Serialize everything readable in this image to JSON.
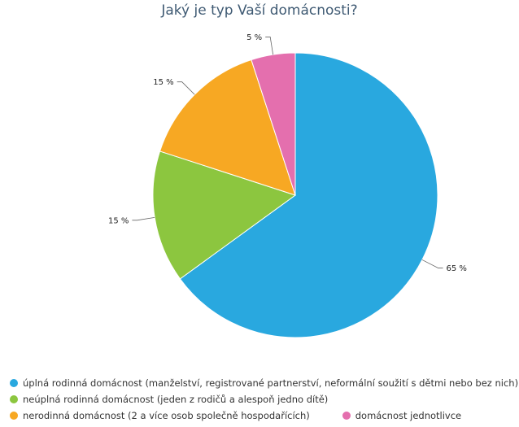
{
  "chart_data": {
    "type": "pie",
    "title": "Jaký je typ Vaší domácnosti?",
    "categories": [
      "úplná rodinná domácnost (manželství, registrované partnerství, neformální soužití s dětmi nebo bez nich)",
      "neúplná rodinná domácnost (jeden z rodičů a alespoň jedno dítě)",
      "nerodinná domácnost (2 a více osob společně hospodařících)",
      "domácnost jednotlivce"
    ],
    "values": [
      65,
      15,
      15,
      5
    ],
    "value_labels": [
      "65 %",
      "15 %",
      "15 %",
      "5 %"
    ],
    "colors": [
      "#29a8df",
      "#8cc63f",
      "#f7a823",
      "#e46fae"
    ],
    "legend_position": "bottom"
  }
}
